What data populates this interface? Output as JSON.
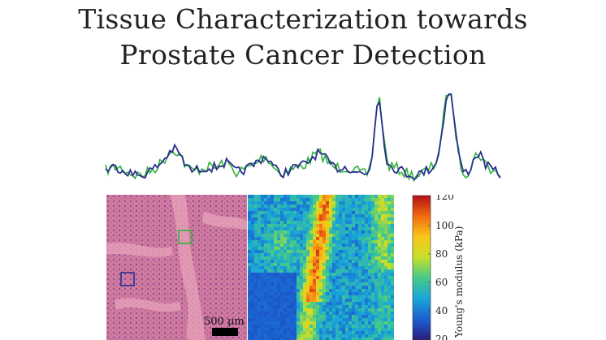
{
  "document": {
    "title_line1": "Tissue Characterization towards",
    "title_line2": "Prostate Cancer Detection"
  },
  "figure": {
    "scale_bar_label": "500 μm",
    "colorbar": {
      "label": "Young's modulus (kPa)",
      "ticks": [
        "120",
        "100",
        "80",
        "60",
        "40",
        "20"
      ],
      "colors": [
        "#2a1b7a",
        "#1b5fd1",
        "#19a6d8",
        "#45c98a",
        "#c6e02a",
        "#f7c719",
        "#f26b12",
        "#b50f16"
      ]
    },
    "colors": {
      "series_green": "#2fb33a",
      "series_blue": "#2a2f8f",
      "roi_green": "#2fb33a",
      "roi_blue": "#2a2f8f",
      "histology_base": "#d9789a"
    }
  }
}
